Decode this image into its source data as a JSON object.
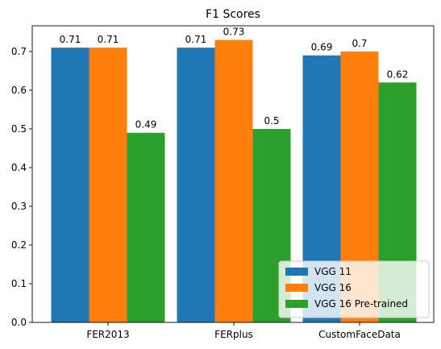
{
  "chart_data": {
    "type": "bar",
    "title": "F1 Scores",
    "xlabel": "",
    "ylabel": "",
    "categories": [
      "FER2013",
      "FERplus",
      "CustomFaceData"
    ],
    "series": [
      {
        "name": "VGG 11",
        "values": [
          0.71,
          0.71,
          0.69
        ],
        "labels": [
          "0.71",
          "0.71",
          "0.69"
        ],
        "color": "#1f77b4"
      },
      {
        "name": "VGG 16",
        "values": [
          0.71,
          0.73,
          0.7
        ],
        "labels": [
          "0.71",
          "0.73",
          "0.7"
        ],
        "color": "#ff7f0e"
      },
      {
        "name": "VGG 16 Pre-trained",
        "values": [
          0.49,
          0.5,
          0.62
        ],
        "labels": [
          "0.49",
          "0.5",
          "0.62"
        ],
        "color": "#2ca02c"
      }
    ],
    "ylim": [
      0,
      0.7665
    ],
    "yticks": [
      "0.0",
      "0.1",
      "0.2",
      "0.3",
      "0.4",
      "0.5",
      "0.6",
      "0.7"
    ],
    "grid": false,
    "legend_position": "bottom-right"
  }
}
